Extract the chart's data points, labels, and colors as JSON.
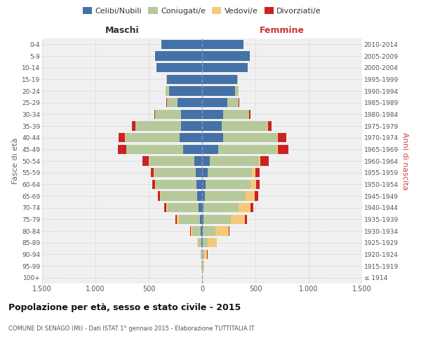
{
  "age_groups": [
    "100+",
    "95-99",
    "90-94",
    "85-89",
    "80-84",
    "75-79",
    "70-74",
    "65-69",
    "60-64",
    "55-59",
    "50-54",
    "45-49",
    "40-44",
    "35-39",
    "30-34",
    "25-29",
    "20-24",
    "15-19",
    "10-14",
    "5-9",
    "0-4"
  ],
  "birth_years": [
    "≤ 1914",
    "1915-1919",
    "1920-1924",
    "1925-1929",
    "1930-1934",
    "1935-1939",
    "1940-1944",
    "1945-1949",
    "1950-1954",
    "1955-1959",
    "1960-1964",
    "1965-1969",
    "1970-1974",
    "1975-1979",
    "1980-1984",
    "1985-1989",
    "1990-1994",
    "1995-1999",
    "2000-2004",
    "2005-2009",
    "2010-2014"
  ],
  "males": {
    "celibi": [
      0,
      2,
      3,
      5,
      10,
      18,
      30,
      45,
      55,
      60,
      75,
      180,
      210,
      195,
      200,
      230,
      310,
      330,
      430,
      440,
      380
    ],
    "coniugati": [
      0,
      3,
      8,
      30,
      80,
      200,
      290,
      340,
      380,
      390,
      420,
      530,
      510,
      430,
      240,
      100,
      30,
      5,
      0,
      0,
      0
    ],
    "vedovi": [
      0,
      2,
      5,
      10,
      15,
      20,
      15,
      10,
      5,
      3,
      2,
      2,
      2,
      2,
      0,
      0,
      0,
      0,
      0,
      0,
      0
    ],
    "divorziati": [
      0,
      0,
      0,
      0,
      5,
      10,
      20,
      20,
      30,
      30,
      60,
      80,
      60,
      30,
      10,
      5,
      0,
      0,
      0,
      0,
      0
    ]
  },
  "females": {
    "nubili": [
      0,
      2,
      3,
      5,
      8,
      10,
      15,
      25,
      35,
      50,
      70,
      150,
      195,
      185,
      200,
      235,
      310,
      330,
      430,
      450,
      390
    ],
    "coniugate": [
      2,
      5,
      15,
      50,
      120,
      260,
      330,
      380,
      420,
      420,
      460,
      550,
      510,
      430,
      240,
      110,
      30,
      5,
      0,
      0,
      0
    ],
    "vedove": [
      5,
      15,
      30,
      80,
      120,
      130,
      110,
      90,
      50,
      30,
      15,
      10,
      5,
      3,
      2,
      0,
      0,
      0,
      0,
      0,
      0
    ],
    "divorziate": [
      0,
      0,
      2,
      5,
      10,
      20,
      25,
      30,
      35,
      40,
      80,
      100,
      80,
      35,
      15,
      5,
      0,
      0,
      0,
      0,
      0
    ]
  },
  "colors": {
    "celibi_nubili": "#4472a8",
    "coniugati_e": "#b5c99a",
    "vedovi_e": "#f5c97a",
    "divorziati_e": "#cc2222"
  },
  "title": "Popolazione per età, sesso e stato civile - 2015",
  "subtitle": "COMUNE DI SENAGO (MI) - Dati ISTAT 1° gennaio 2015 - Elaborazione TUTTITALIA.IT",
  "xlabel_left": "Maschi",
  "xlabel_right": "Femmine",
  "ylabel_left": "Fasce di età",
  "ylabel_right": "Anni di nascita",
  "xlim": 1500,
  "bg_color": "#f0f0f0",
  "grid_color": "#cccccc"
}
